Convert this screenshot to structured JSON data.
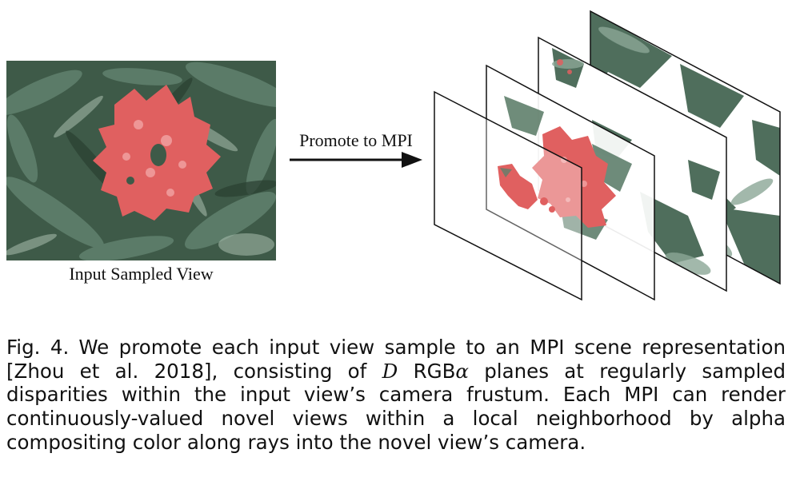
{
  "figure": {
    "input_view_label": "Input Sampled View",
    "arrow_label": "Promote to MPI",
    "colors": {
      "foliage_dark": "#2f4a3a",
      "foliage_mid": "#5f7f6c",
      "foliage_light": "#a9bfb0",
      "flower": "#e06060",
      "plane_stroke": "#111111"
    }
  },
  "caption": {
    "fig_label": "Fig. 4.",
    "text_part1": "We promote each input view sample to an MPI scene representation [Zhou et al. 2018], consisting of ",
    "math_var": "D",
    "text_part2": " RGB",
    "math_alpha": "α",
    "text_part3": " planes at regularly sampled disparities within the input view’s camera frustum. Each MPI can render continuously-valued novel views within a local neighborhood by alpha compositing color along rays into the novel view’s camera."
  }
}
